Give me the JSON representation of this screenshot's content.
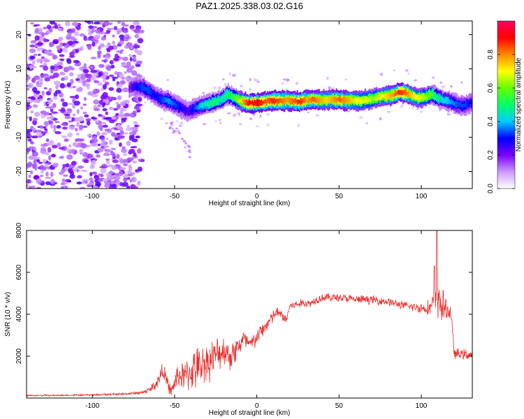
{
  "figure": {
    "title": "PAZ1.2025.338.03.02.G16"
  },
  "chart_data": [
    {
      "type": "heatmap",
      "name": "spectrogram",
      "title": "PAZ1.2025.338.03.02.G16",
      "xlabel": "Height of straight line (km)",
      "ylabel": "Frequency (Hz)",
      "xlim": [
        -140,
        131
      ],
      "ylim": [
        -25,
        24
      ],
      "x_ticks": [
        -100,
        -50,
        0,
        50,
        100
      ],
      "y_ticks": [
        -20,
        -10,
        0,
        10,
        20
      ],
      "noise_region": {
        "x_range": [
          -140,
          -70
        ],
        "y_range": [
          -25,
          24
        ]
      },
      "ridge": {
        "x": [
          -78,
          -74,
          -70,
          -66,
          -62,
          -58,
          -54,
          -50,
          -46,
          -42,
          -38,
          -34,
          -30,
          -26,
          -22,
          -18,
          -14,
          -10,
          -6,
          -2,
          2,
          6,
          10,
          14,
          18,
          22,
          26,
          30,
          34,
          38,
          42,
          46,
          50,
          54,
          58,
          62,
          66,
          70,
          74,
          78,
          82,
          86,
          90,
          94,
          98,
          102,
          106,
          110,
          114,
          118,
          122,
          126,
          130
        ],
        "y": [
          4.5,
          4.8,
          4.6,
          3.5,
          2.0,
          1.0,
          0.5,
          -0.5,
          -1.5,
          -2.5,
          -1.5,
          -0.8,
          -0.3,
          0.3,
          1.0,
          2.5,
          1.5,
          0.5,
          0.0,
          0.0,
          0.2,
          0.5,
          0.7,
          0.6,
          0.8,
          0.5,
          0.4,
          0.8,
          1.0,
          0.8,
          0.9,
          1.0,
          0.9,
          0.7,
          0.8,
          0.6,
          0.9,
          1.3,
          1.8,
          2.0,
          2.3,
          3.2,
          3.0,
          2.2,
          1.5,
          1.8,
          2.6,
          1.5,
          0.8,
          0.3,
          -0.5,
          -0.8,
          0.2
        ],
        "amplitude": [
          0.15,
          0.25,
          0.3,
          0.3,
          0.25,
          0.3,
          0.35,
          0.3,
          0.25,
          0.2,
          0.3,
          0.4,
          0.45,
          0.5,
          0.45,
          0.5,
          0.55,
          0.75,
          0.9,
          0.95,
          0.9,
          0.85,
          0.9,
          0.85,
          0.8,
          0.85,
          0.9,
          0.8,
          0.85,
          0.8,
          0.75,
          0.8,
          0.85,
          0.8,
          0.75,
          0.7,
          0.7,
          0.65,
          0.7,
          0.75,
          0.8,
          0.9,
          0.85,
          0.75,
          0.7,
          0.65,
          0.6,
          0.45,
          0.4,
          0.35,
          0.3,
          0.3,
          0.25
        ]
      },
      "colorbar": {
        "label": "Normalized spectral amplitude",
        "range": [
          0.0,
          1.0
        ],
        "ticks": [
          "0.0",
          "0.2",
          "0.4",
          "0.6",
          "0.8"
        ],
        "tick_values": [
          0.0,
          0.2,
          0.4,
          0.6,
          0.8
        ],
        "colors": [
          "#ffffff",
          "#cc99ff",
          "#7a00ff",
          "#0000ff",
          "#00ccff",
          "#00ff66",
          "#66ff00",
          "#ffff00",
          "#ff8800",
          "#ff0000",
          "#ff0066"
        ]
      }
    },
    {
      "type": "line",
      "name": "snr",
      "xlabel": "Height of straight line (km)",
      "ylabel": "SNR (10 * v/v)",
      "xlim": [
        -140,
        131
      ],
      "ylim": [
        0,
        8000
      ],
      "x_ticks": [
        -100,
        -50,
        0,
        50,
        100
      ],
      "y_ticks": [
        2000,
        4000,
        6000,
        8000
      ],
      "color": "#e8302e",
      "series": [
        {
          "name": "SNR",
          "x": [
            -140,
            -120,
            -100,
            -80,
            -70,
            -65,
            -60,
            -57,
            -55,
            -52,
            -48,
            -44,
            -40,
            -36,
            -32,
            -28,
            -24,
            -20,
            -16,
            -12,
            -8,
            -4,
            0,
            4,
            8,
            12,
            16,
            18,
            20,
            24,
            28,
            32,
            36,
            40,
            50,
            60,
            70,
            80,
            90,
            100,
            105,
            110,
            112,
            115,
            118,
            120,
            125,
            131
          ],
          "y": [
            120,
            130,
            150,
            200,
            260,
            400,
            800,
            1400,
            800,
            300,
            1100,
            1000,
            1300,
            1400,
            1700,
            1800,
            2100,
            2300,
            2000,
            2400,
            2800,
            2500,
            2900,
            3300,
            3700,
            4100,
            3900,
            3700,
            4400,
            4450,
            4550,
            4500,
            4700,
            4800,
            4800,
            4700,
            4700,
            4600,
            4400,
            4300,
            4300,
            4600,
            4500,
            4200,
            4100,
            2100,
            2100,
            2050
          ],
          "spread": [
            40,
            40,
            40,
            60,
            80,
            150,
            350,
            400,
            350,
            250,
            600,
            700,
            900,
            1000,
            900,
            900,
            800,
            700,
            700,
            600,
            500,
            450,
            400,
            350,
            350,
            250,
            250,
            250,
            200,
            200,
            200,
            200,
            200,
            200,
            200,
            200,
            200,
            200,
            200,
            250,
            400,
            900,
            900,
            500,
            400,
            250,
            250,
            250
          ]
        }
      ],
      "annotations": [
        {
          "x": 109.5,
          "y": 8000,
          "note": "spike to top of axis"
        },
        {
          "x": 108,
          "y": 6300,
          "note": "secondary spike"
        }
      ]
    }
  ]
}
